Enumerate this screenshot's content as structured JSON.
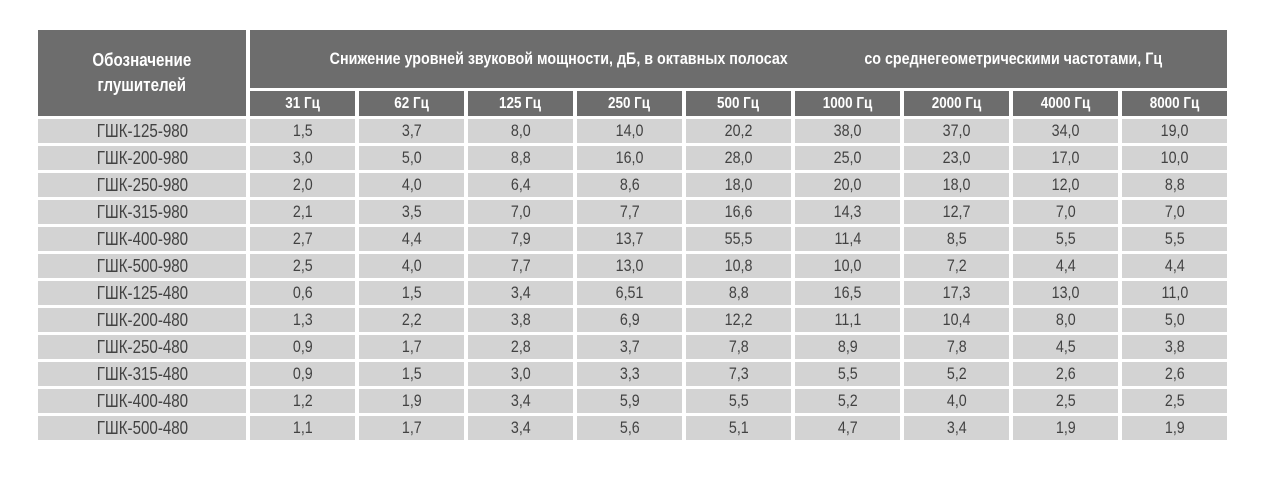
{
  "chart_data": {
    "type": "table",
    "designation_header_lines": [
      "Обозначение",
      "глушителей"
    ],
    "main_header_lines": [
      "Снижение уровней звуковой мощности, дБ, в октавных полосах",
      "со среднегеометрическими частотами, Гц"
    ],
    "frequency_headers": [
      "31 Гц",
      "62 Гц",
      "125 Гц",
      "250 Гц",
      "500 Гц",
      "1000 Гц",
      "2000 Гц",
      "4000 Гц",
      "8000 Гц"
    ],
    "rows": [
      {
        "name": "ГШК-125-980",
        "values": [
          "1,5",
          "3,7",
          "8,0",
          "14,0",
          "20,2",
          "38,0",
          "37,0",
          "34,0",
          "19,0"
        ]
      },
      {
        "name": "ГШК-200-980",
        "values": [
          "3,0",
          "5,0",
          "8,8",
          "16,0",
          "28,0",
          "25,0",
          "23,0",
          "17,0",
          "10,0"
        ]
      },
      {
        "name": "ГШК-250-980",
        "values": [
          "2,0",
          "4,0",
          "6,4",
          "8,6",
          "18,0",
          "20,0",
          "18,0",
          "12,0",
          "8,8"
        ]
      },
      {
        "name": "ГШК-315-980",
        "values": [
          "2,1",
          "3,5",
          "7,0",
          "7,7",
          "16,6",
          "14,3",
          "12,7",
          "7,0",
          "7,0"
        ]
      },
      {
        "name": "ГШК-400-980",
        "values": [
          "2,7",
          "4,4",
          "7,9",
          "13,7",
          "55,5",
          "11,4",
          "8,5",
          "5,5",
          "5,5"
        ]
      },
      {
        "name": "ГШК-500-980",
        "values": [
          "2,5",
          "4,0",
          "7,7",
          "13,0",
          "10,8",
          "10,0",
          "7,2",
          "4,4",
          "4,4"
        ]
      },
      {
        "name": "ГШК-125-480",
        "values": [
          "0,6",
          "1,5",
          "3,4",
          "6,51",
          "8,8",
          "16,5",
          "17,3",
          "13,0",
          "11,0"
        ]
      },
      {
        "name": "ГШК-200-480",
        "values": [
          "1,3",
          "2,2",
          "3,8",
          "6,9",
          "12,2",
          "11,1",
          "10,4",
          "8,0",
          "5,0"
        ]
      },
      {
        "name": "ГШК-250-480",
        "values": [
          "0,9",
          "1,7",
          "2,8",
          "3,7",
          "7,8",
          "8,9",
          "7,8",
          "4,5",
          "3,8"
        ]
      },
      {
        "name": "ГШК-315-480",
        "values": [
          "0,9",
          "1,5",
          "3,0",
          "3,3",
          "7,3",
          "5,5",
          "5,2",
          "2,6",
          "2,6"
        ]
      },
      {
        "name": "ГШК-400-480",
        "values": [
          "1,2",
          "1,9",
          "3,4",
          "5,9",
          "5,5",
          "5,2",
          "4,0",
          "2,5",
          "2,5"
        ]
      },
      {
        "name": "ГШК-500-480",
        "values": [
          "1,1",
          "1,7",
          "3,4",
          "5,6",
          "5,1",
          "4,7",
          "3,4",
          "1,9",
          "1,9"
        ]
      }
    ]
  },
  "colors": {
    "header_bg": "#6d6d6d",
    "header_text": "#ffffff",
    "cell_bg": "#d3d3d3",
    "cell_text": "#424242",
    "gap": "#ffffff"
  }
}
